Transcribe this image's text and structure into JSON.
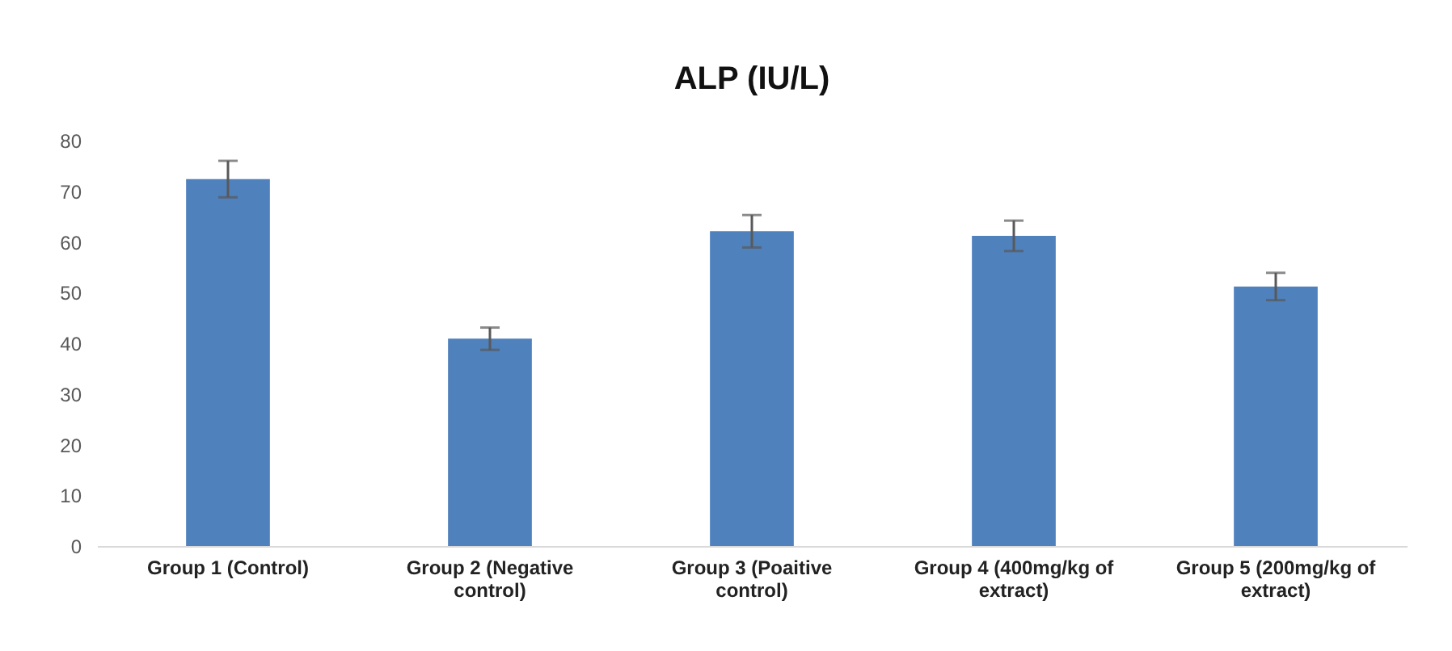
{
  "chart_data": {
    "type": "bar",
    "title": "ALP (IU/L)",
    "categories": [
      "Group 1 (Control)",
      "Group 2 (Negative control)",
      "Group 3 (Poaitive control)",
      "Group 4 (400mg/kg of extract)",
      "Group 5 (200mg/kg of extract)"
    ],
    "values": [
      72.4,
      40.9,
      62.1,
      61.2,
      51.2
    ],
    "errors": [
      3.6,
      2.2,
      3.2,
      3,
      2.7
    ],
    "color": "#4f81bd",
    "ylim": [
      0,
      80
    ],
    "yticks": [
      0,
      10,
      20,
      30,
      40,
      50,
      60,
      70,
      80
    ],
    "grid": false
  }
}
